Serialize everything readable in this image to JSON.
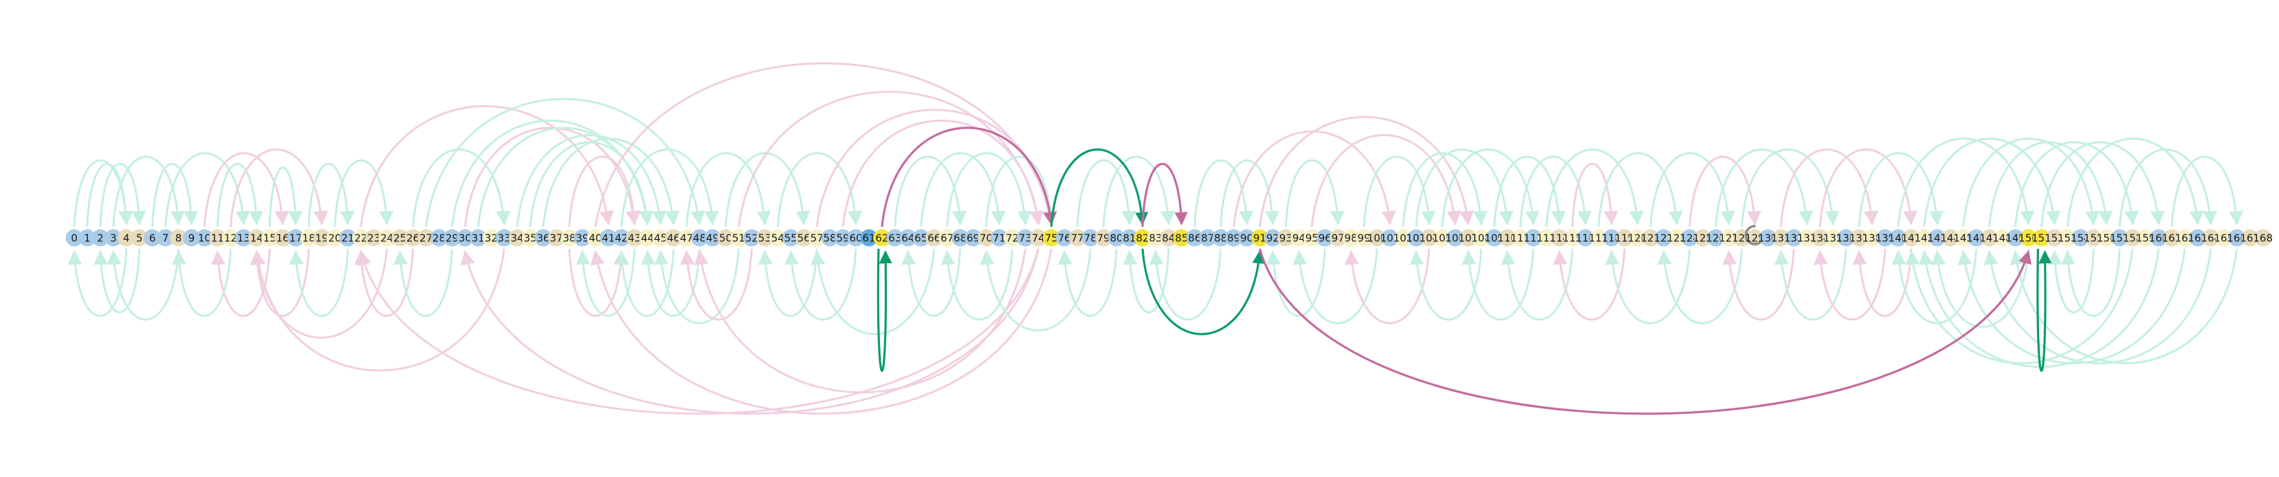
{
  "diagram": {
    "node_count": 169,
    "colors": {
      "node_blue": "#a9cce8",
      "node_blue_strong": "#5ea9dd",
      "node_tan": "#e8dcbc",
      "node_cream": "#f7f1c8",
      "node_yellow": "#f4e43a",
      "node_gray": "#cfcfcf",
      "edge_green_faint": "#c4efe2",
      "edge_pink_faint": "#f0cfe0",
      "edge_green_strong": "#0d9b6e",
      "edge_pink_strong": "#c46b9e",
      "ring_gray": "#8a8a8a"
    },
    "highlighted_nodes": [
      62,
      75,
      82,
      85,
      91,
      150,
      151
    ],
    "ring_node": 129,
    "node_color_groups": {
      "blue": [
        0,
        1,
        2,
        3,
        6,
        7,
        9,
        10,
        13,
        17,
        21,
        28,
        29,
        30,
        31,
        33,
        36,
        39,
        41,
        42,
        48,
        49,
        52,
        55,
        58,
        59,
        60,
        61,
        63,
        64,
        65,
        68,
        69,
        71,
        73,
        76,
        78,
        80,
        81,
        86,
        87,
        88,
        89,
        90,
        92,
        96,
        101,
        103,
        106,
        109,
        112,
        116,
        118,
        122,
        124,
        126,
        130,
        132,
        136,
        139,
        140,
        143,
        146,
        149,
        154,
        157,
        160,
        163,
        166
      ],
      "tan": [
        4,
        5,
        8,
        11,
        14,
        16,
        19,
        23,
        25,
        26,
        27,
        34,
        37,
        43,
        46,
        50,
        53,
        56,
        66,
        70,
        74,
        77,
        79,
        84,
        93,
        97,
        100,
        104,
        107,
        110,
        114,
        119,
        121,
        125,
        128,
        131,
        134,
        137,
        141,
        144,
        147,
        152,
        155,
        158,
        161,
        164,
        167,
        168
      ],
      "cream": [
        12,
        15,
        18,
        20,
        22,
        24,
        32,
        35,
        38,
        40,
        44,
        45,
        47,
        51,
        54,
        57,
        67,
        72,
        83,
        94,
        95,
        98,
        99,
        102,
        105,
        108,
        111,
        113,
        115,
        117,
        120,
        123,
        127,
        133,
        135,
        138,
        142,
        145,
        148,
        153,
        156,
        159,
        162,
        165
      ]
    },
    "edges_top_strong": [
      {
        "from": 62,
        "to": 75,
        "color": "pink"
      },
      {
        "from": 75,
        "to": 82,
        "color": "green"
      },
      {
        "from": 82,
        "to": 85,
        "color": "pink"
      }
    ],
    "edges_bottom_strong": [
      {
        "from": 62,
        "to": 62,
        "color": "green"
      },
      {
        "from": 82,
        "to": 91,
        "color": "green"
      },
      {
        "from": 91,
        "to": 150,
        "color": "pink"
      },
      {
        "from": 151,
        "to": 151,
        "color": "green"
      }
    ],
    "edges_top_faint": [
      {
        "from": 0,
        "to": 4,
        "color": "green"
      },
      {
        "from": 1,
        "to": 4,
        "color": "green"
      },
      {
        "from": 2,
        "to": 5,
        "color": "green"
      },
      {
        "from": 3,
        "to": 8,
        "color": "green"
      },
      {
        "from": 6,
        "to": 9,
        "color": "green"
      },
      {
        "from": 7,
        "to": 13,
        "color": "green"
      },
      {
        "from": 10,
        "to": 16,
        "color": "pink"
      },
      {
        "from": 11,
        "to": 14,
        "color": "green"
      },
      {
        "from": 12,
        "to": 19,
        "color": "pink"
      },
      {
        "from": 15,
        "to": 17,
        "color": "green"
      },
      {
        "from": 18,
        "to": 21,
        "color": "green"
      },
      {
        "from": 20,
        "to": 24,
        "color": "green"
      },
      {
        "from": 22,
        "to": 41,
        "color": "pink"
      },
      {
        "from": 26,
        "to": 33,
        "color": "green"
      },
      {
        "from": 27,
        "to": 48,
        "color": "green"
      },
      {
        "from": 29,
        "to": 44,
        "color": "green"
      },
      {
        "from": 30,
        "to": 43,
        "color": "pink"
      },
      {
        "from": 31,
        "to": 44,
        "color": "green"
      },
      {
        "from": 34,
        "to": 45,
        "color": "green"
      },
      {
        "from": 35,
        "to": 44,
        "color": "green"
      },
      {
        "from": 36,
        "to": 46,
        "color": "green"
      },
      {
        "from": 38,
        "to": 43,
        "color": "pink"
      },
      {
        "from": 40,
        "to": 75,
        "color": "pink"
      },
      {
        "from": 42,
        "to": 49,
        "color": "green"
      },
      {
        "from": 47,
        "to": 53,
        "color": "green"
      },
      {
        "from": 50,
        "to": 56,
        "color": "green"
      },
      {
        "from": 51,
        "to": 74,
        "color": "pink"
      },
      {
        "from": 54,
        "to": 60,
        "color": "green"
      },
      {
        "from": 57,
        "to": 75,
        "color": "pink"
      },
      {
        "from": 59,
        "to": 74,
        "color": "pink"
      },
      {
        "from": 63,
        "to": 68,
        "color": "green"
      },
      {
        "from": 65,
        "to": 71,
        "color": "green"
      },
      {
        "from": 67,
        "to": 73,
        "color": "green"
      },
      {
        "from": 70,
        "to": 75,
        "color": "green"
      },
      {
        "from": 77,
        "to": 81,
        "color": "green"
      },
      {
        "from": 79,
        "to": 84,
        "color": "green"
      },
      {
        "from": 86,
        "to": 90,
        "color": "green"
      },
      {
        "from": 88,
        "to": 92,
        "color": "green"
      },
      {
        "from": 89,
        "to": 101,
        "color": "pink"
      },
      {
        "from": 91,
        "to": 107,
        "color": "pink"
      },
      {
        "from": 93,
        "to": 97,
        "color": "green"
      },
      {
        "from": 95,
        "to": 106,
        "color": "pink"
      },
      {
        "from": 99,
        "to": 104,
        "color": "green"
      },
      {
        "from": 102,
        "to": 108,
        "color": "green"
      },
      {
        "from": 103,
        "to": 110,
        "color": "green"
      },
      {
        "from": 105,
        "to": 112,
        "color": "green"
      },
      {
        "from": 109,
        "to": 114,
        "color": "green"
      },
      {
        "from": 111,
        "to": 116,
        "color": "green"
      },
      {
        "from": 113,
        "to": 120,
        "color": "green"
      },
      {
        "from": 115,
        "to": 118,
        "color": "pink"
      },
      {
        "from": 117,
        "to": 123,
        "color": "green"
      },
      {
        "from": 121,
        "to": 127,
        "color": "green"
      },
      {
        "from": 124,
        "to": 129,
        "color": "pink"
      },
      {
        "from": 126,
        "to": 133,
        "color": "green"
      },
      {
        "from": 128,
        "to": 135,
        "color": "green"
      },
      {
        "from": 131,
        "to": 138,
        "color": "pink"
      },
      {
        "from": 134,
        "to": 141,
        "color": "pink"
      },
      {
        "from": 137,
        "to": 143,
        "color": "green"
      },
      {
        "from": 140,
        "to": 150,
        "color": "green"
      },
      {
        "from": 142,
        "to": 152,
        "color": "green"
      },
      {
        "from": 145,
        "to": 155,
        "color": "green"
      },
      {
        "from": 147,
        "to": 156,
        "color": "green"
      },
      {
        "from": 149,
        "to": 158,
        "color": "green"
      },
      {
        "from": 151,
        "to": 160,
        "color": "green"
      },
      {
        "from": 153,
        "to": 163,
        "color": "green"
      },
      {
        "from": 157,
        "to": 164,
        "color": "green"
      },
      {
        "from": 161,
        "to": 166,
        "color": "green"
      }
    ],
    "edges_bottom_faint": [
      {
        "from": 4,
        "to": 0,
        "color": "green"
      },
      {
        "from": 5,
        "to": 2,
        "color": "green"
      },
      {
        "from": 8,
        "to": 3,
        "color": "green"
      },
      {
        "from": 12,
        "to": 8,
        "color": "green"
      },
      {
        "from": 15,
        "to": 11,
        "color": "pink"
      },
      {
        "from": 18,
        "to": 14,
        "color": "pink"
      },
      {
        "from": 24,
        "to": 14,
        "color": "pink"
      },
      {
        "from": 21,
        "to": 17,
        "color": "green"
      },
      {
        "from": 26,
        "to": 22,
        "color": "pink"
      },
      {
        "from": 29,
        "to": 25,
        "color": "green"
      },
      {
        "from": 33,
        "to": 14,
        "color": "pink"
      },
      {
        "from": 38,
        "to": 42,
        "color": "pink"
      },
      {
        "from": 43,
        "to": 39,
        "color": "green"
      },
      {
        "from": 46,
        "to": 42,
        "color": "green"
      },
      {
        "from": 48,
        "to": 44,
        "color": "green"
      },
      {
        "from": 51,
        "to": 45,
        "color": "green"
      },
      {
        "from": 52,
        "to": 47,
        "color": "pink"
      },
      {
        "from": 57,
        "to": 53,
        "color": "green"
      },
      {
        "from": 60,
        "to": 55,
        "color": "green"
      },
      {
        "from": 66,
        "to": 57,
        "color": "green"
      },
      {
        "from": 68,
        "to": 64,
        "color": "green"
      },
      {
        "from": 72,
        "to": 67,
        "color": "green"
      },
      {
        "from": 74,
        "to": 30,
        "color": "pink"
      },
      {
        "from": 75,
        "to": 40,
        "color": "pink"
      },
      {
        "from": 74,
        "to": 22,
        "color": "pink"
      },
      {
        "from": 73,
        "to": 48,
        "color": "pink"
      },
      {
        "from": 78,
        "to": 70,
        "color": "green"
      },
      {
        "from": 80,
        "to": 76,
        "color": "green"
      },
      {
        "from": 84,
        "to": 81,
        "color": "green"
      },
      {
        "from": 88,
        "to": 83,
        "color": "green"
      },
      {
        "from": 96,
        "to": 92,
        "color": "green"
      },
      {
        "from": 100,
        "to": 94,
        "color": "green"
      },
      {
        "from": 104,
        "to": 98,
        "color": "pink"
      },
      {
        "from": 108,
        "to": 103,
        "color": "green"
      },
      {
        "from": 112,
        "to": 107,
        "color": "green"
      },
      {
        "from": 115,
        "to": 110,
        "color": "green"
      },
      {
        "from": 119,
        "to": 114,
        "color": "pink"
      },
      {
        "from": 124,
        "to": 118,
        "color": "green"
      },
      {
        "from": 128,
        "to": 122,
        "color": "green"
      },
      {
        "from": 132,
        "to": 127,
        "color": "pink"
      },
      {
        "from": 136,
        "to": 131,
        "color": "green"
      },
      {
        "from": 139,
        "to": 134,
        "color": "pink"
      },
      {
        "from": 141,
        "to": 137,
        "color": "pink"
      },
      {
        "from": 146,
        "to": 140,
        "color": "green"
      },
      {
        "from": 150,
        "to": 143,
        "color": "green"
      },
      {
        "from": 158,
        "to": 141,
        "color": "green"
      },
      {
        "from": 160,
        "to": 142,
        "color": "green"
      },
      {
        "from": 162,
        "to": 145,
        "color": "green"
      },
      {
        "from": 164,
        "to": 147,
        "color": "green"
      },
      {
        "from": 166,
        "to": 149,
        "color": "green"
      },
      {
        "from": 155,
        "to": 152,
        "color": "green"
      },
      {
        "from": 157,
        "to": 153,
        "color": "green"
      }
    ]
  }
}
